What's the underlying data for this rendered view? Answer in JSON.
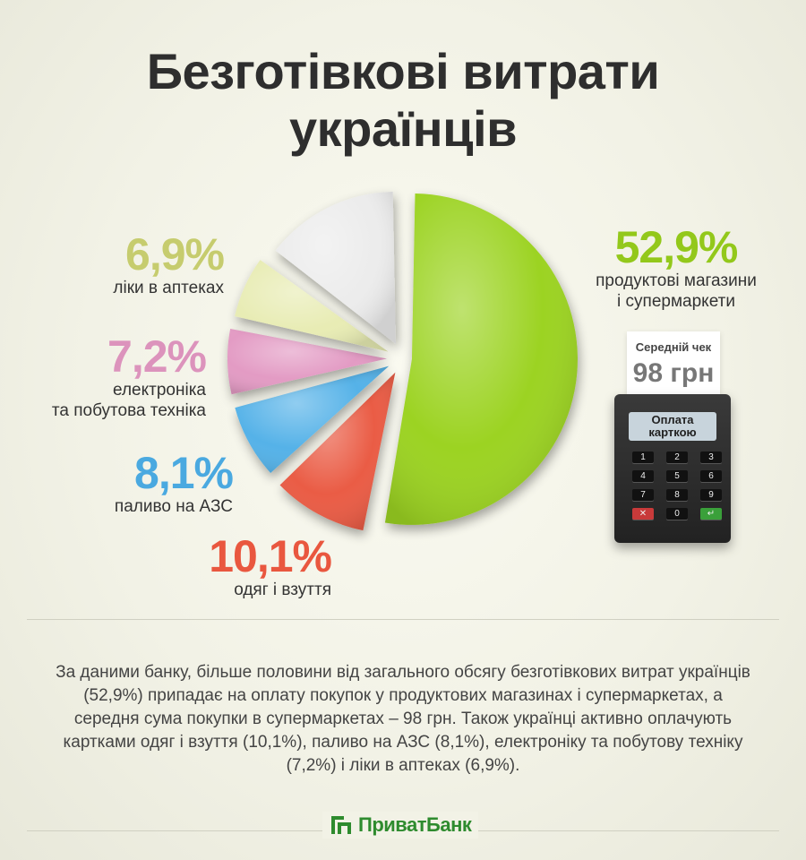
{
  "title": {
    "line1": "Безготівкові витрати",
    "line2": "українців"
  },
  "chart_data": {
    "type": "pie",
    "unit": "%",
    "slices": [
      {
        "label": "продуктові магазини і супермаркети",
        "pct": "52,9%",
        "value": 52.9,
        "color": "#9cd321"
      },
      {
        "label": "одяг і взуття",
        "pct": "10,1%",
        "value": 10.1,
        "color": "#ea5b45"
      },
      {
        "label": "паливо на АЗС",
        "pct": "8,1%",
        "value": 8.1,
        "color": "#55b2e8"
      },
      {
        "label": "електроніка та побутова техніка",
        "pct": "7,2%",
        "value": 7.2,
        "color": "#e39bc4"
      },
      {
        "label": "ліки в аптеках",
        "pct": "6,9%",
        "value": 6.9,
        "color": "#e8ecb4"
      },
      {
        "label": "",
        "pct": "",
        "value": 14.8,
        "color": "#ececec"
      }
    ]
  },
  "labels": {
    "groceries": {
      "pct": "52,9%",
      "line1": "продуктові магазини",
      "line2": "і супермаркети",
      "color": "#93c81b"
    },
    "clothes": {
      "pct": "10,1%",
      "line1": "одяг і взуття",
      "color": "#e9573f"
    },
    "fuel": {
      "pct": "8,1%",
      "line1": "паливо на АЗС",
      "color": "#4aa9e0"
    },
    "electronics": {
      "pct": "7,2%",
      "line1": "електроніка",
      "line2": "та побутова техніка",
      "color": "#dc93bc"
    },
    "pharmacy": {
      "pct": "6,9%",
      "line1": "ліки в аптеках",
      "color": "#c6cc6e"
    }
  },
  "receipt": {
    "title": "Середній чек",
    "amount": "98 грн"
  },
  "terminal": {
    "screen_line1": "Оплата",
    "screen_line2": "карткою",
    "keys": [
      "1",
      "2",
      "3",
      "4",
      "5",
      "6",
      "7",
      "8",
      "9",
      "✕",
      "0",
      "↵"
    ]
  },
  "description": "За даними банку, більше половини від загального обсягу безготівкових витрат українців (52,9%) припадає на оплату покупок у продуктових магазинах і супермаркетах, а середня сума покупки в супермаркетах – 98 грн. Також українці активно оплачують картками одяг і взуття (10,1%), паливо на АЗС (8,1%), електроніку та побутову техніку (7,2%) і ліки в аптеках (6,9%).",
  "brand": {
    "name": "ПриватБанк",
    "color": "#2e8b2e"
  }
}
